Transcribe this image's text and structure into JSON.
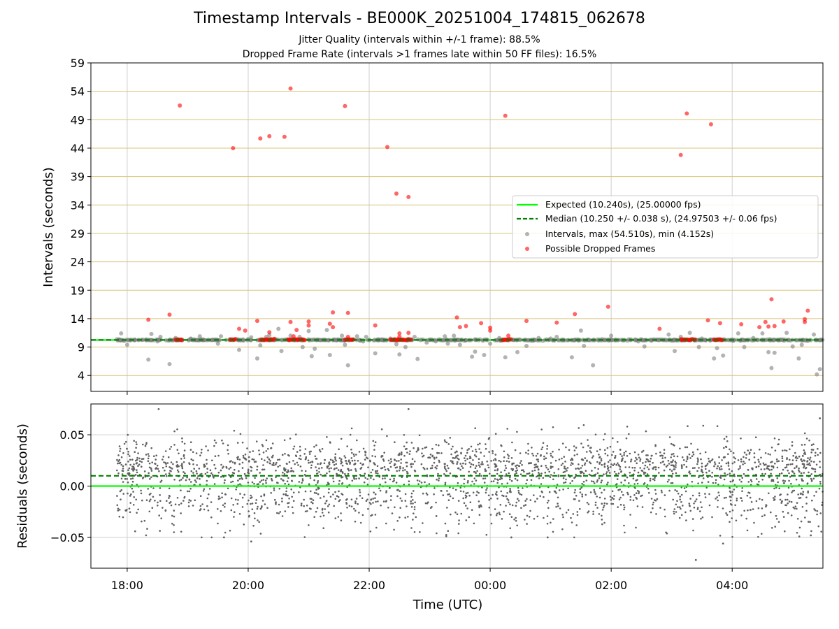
{
  "chart_data": [
    {
      "type": "scatter",
      "title": "Timestamp Intervals - BE000K_20251004_174815_062678",
      "subtitle_lines": [
        "Jitter Quality (intervals within +/-1 frame): 88.5%",
        "Dropped Frame Rate (intervals >1 frames late within 50 FF files): 16.5%"
      ],
      "ylabel": "Intervals (seconds)",
      "ylim": [
        1.2,
        59
      ],
      "yticks": [
        "4",
        "9",
        "14",
        "19",
        "24",
        "29",
        "34",
        "39",
        "44",
        "49",
        "54",
        "59"
      ],
      "y_grid": "horizontal lines at each tick, tan colored",
      "legend_position": "center-right",
      "reference_lines": [
        {
          "name": "Expected (10.240s), (25.00000 fps)",
          "y": 10.24,
          "color": "#00ff00",
          "style": "solid"
        },
        {
          "name": "Median (10.250 +/- 0.038 s), (24.97503 +/- 0.06 fps)",
          "y": 10.25,
          "color": "#008000",
          "style": "dashed"
        }
      ],
      "series": [
        {
          "name": "Intervals, max (54.510s), min (4.152s)",
          "color": "#808080",
          "points": [
            [
              17.9,
              11.4
            ],
            [
              18.0,
              9.4
            ],
            [
              18.35,
              6.8
            ],
            [
              18.4,
              11.3
            ],
            [
              18.5,
              10.0
            ],
            [
              18.55,
              10.8
            ],
            [
              18.7,
              6.0
            ],
            [
              18.8,
              10.6
            ],
            [
              19.05,
              10.5
            ],
            [
              19.2,
              10.9
            ],
            [
              19.5,
              9.6
            ],
            [
              19.55,
              10.9
            ],
            [
              19.7,
              10.4
            ],
            [
              19.85,
              8.5
            ],
            [
              19.9,
              10.3
            ],
            [
              20.05,
              10.7
            ],
            [
              20.15,
              7.0
            ],
            [
              20.2,
              9.3
            ],
            [
              20.3,
              10.8
            ],
            [
              20.35,
              11.1
            ],
            [
              20.5,
              12.2
            ],
            [
              20.55,
              8.3
            ],
            [
              20.7,
              11.0
            ],
            [
              20.85,
              10.8
            ],
            [
              20.9,
              9.0
            ],
            [
              21.0,
              11.8
            ],
            [
              21.05,
              7.4
            ],
            [
              21.1,
              8.7
            ],
            [
              21.3,
              12.0
            ],
            [
              21.35,
              7.6
            ],
            [
              21.45,
              10.2
            ],
            [
              21.55,
              11.0
            ],
            [
              21.6,
              9.4
            ],
            [
              21.65,
              5.8
            ],
            [
              21.8,
              10.9
            ],
            [
              21.9,
              10.0
            ],
            [
              21.95,
              10.8
            ],
            [
              22.1,
              7.9
            ],
            [
              22.35,
              10.5
            ],
            [
              22.45,
              9.5
            ],
            [
              22.5,
              7.7
            ],
            [
              22.6,
              9.0
            ],
            [
              22.65,
              10.4
            ],
            [
              22.75,
              10.8
            ],
            [
              22.8,
              6.9
            ],
            [
              22.95,
              9.8
            ],
            [
              23.1,
              10.0
            ],
            [
              23.25,
              10.9
            ],
            [
              23.3,
              9.6
            ],
            [
              23.4,
              11.0
            ],
            [
              23.5,
              9.4
            ],
            [
              23.6,
              10.2
            ],
            [
              23.7,
              7.3
            ],
            [
              23.75,
              8.2
            ],
            [
              23.9,
              7.6
            ],
            [
              24.0,
              9.6
            ],
            [
              24.15,
              10.6
            ],
            [
              24.25,
              7.2
            ],
            [
              24.45,
              8.1
            ],
            [
              24.6,
              9.2
            ],
            [
              24.8,
              10.6
            ],
            [
              25.0,
              10.5
            ],
            [
              25.1,
              10.8
            ],
            [
              25.35,
              7.2
            ],
            [
              25.5,
              11.9
            ],
            [
              25.55,
              9.2
            ],
            [
              25.7,
              5.8
            ],
            [
              25.85,
              10.4
            ],
            [
              26.0,
              11.0
            ],
            [
              26.2,
              10.2
            ],
            [
              26.45,
              10.0
            ],
            [
              26.55,
              9.1
            ],
            [
              26.75,
              10.3
            ],
            [
              26.95,
              11.2
            ],
            [
              27.05,
              8.3
            ],
            [
              27.15,
              10.8
            ],
            [
              27.3,
              11.5
            ],
            [
              27.45,
              9.0
            ],
            [
              27.5,
              10.5
            ],
            [
              27.7,
              7.0
            ],
            [
              27.75,
              8.8
            ],
            [
              27.85,
              7.5
            ],
            [
              28.1,
              11.4
            ],
            [
              28.2,
              9.0
            ],
            [
              28.35,
              10.6
            ],
            [
              28.5,
              11.4
            ],
            [
              28.6,
              8.1
            ],
            [
              28.7,
              8.0
            ],
            [
              28.9,
              11.5
            ],
            [
              29.0,
              9.1
            ],
            [
              29.1,
              7.0
            ],
            [
              29.15,
              9.4
            ],
            [
              29.25,
              10.1
            ],
            [
              29.4,
              4.2
            ],
            [
              29.45,
              5.1
            ],
            [
              29.35,
              11.2
            ],
            [
              28.65,
              5.3
            ]
          ]
        },
        {
          "name": "Possible Dropped Frames",
          "color": "#ff0000",
          "points": [
            [
              18.35,
              13.8
            ],
            [
              18.7,
              14.7
            ],
            [
              18.87,
              51.5
            ],
            [
              19.75,
              44.0
            ],
            [
              19.85,
              12.2
            ],
            [
              19.95,
              11.9
            ],
            [
              20.15,
              13.6
            ],
            [
              20.2,
              45.7
            ],
            [
              20.35,
              46.1
            ],
            [
              20.35,
              11.6
            ],
            [
              20.6,
              46.0
            ],
            [
              20.7,
              13.4
            ],
            [
              20.7,
              54.5
            ],
            [
              20.75,
              10.9
            ],
            [
              20.8,
              12.0
            ],
            [
              21.0,
              13.5
            ],
            [
              21.0,
              12.8
            ],
            [
              21.35,
              13.1
            ],
            [
              21.4,
              15.1
            ],
            [
              21.4,
              12.5
            ],
            [
              21.6,
              51.4
            ],
            [
              21.65,
              15.0
            ],
            [
              21.65,
              10.8
            ],
            [
              22.1,
              12.8
            ],
            [
              22.3,
              44.2
            ],
            [
              22.45,
              36.0
            ],
            [
              22.5,
              11.4
            ],
            [
              22.5,
              10.8
            ],
            [
              22.65,
              35.4
            ],
            [
              22.65,
              11.5
            ],
            [
              23.45,
              14.2
            ],
            [
              23.5,
              12.5
            ],
            [
              23.6,
              12.7
            ],
            [
              23.85,
              13.2
            ],
            [
              24.0,
              12.4
            ],
            [
              24.0,
              11.9
            ],
            [
              24.25,
              49.7
            ],
            [
              24.3,
              11.0
            ],
            [
              24.6,
              13.6
            ],
            [
              25.1,
              13.3
            ],
            [
              25.4,
              14.8
            ],
            [
              25.95,
              16.1
            ],
            [
              26.8,
              12.2
            ],
            [
              27.15,
              42.8
            ],
            [
              27.25,
              50.1
            ],
            [
              27.6,
              13.7
            ],
            [
              27.65,
              48.2
            ],
            [
              27.8,
              13.2
            ],
            [
              28.15,
              13.0
            ],
            [
              28.45,
              12.5
            ],
            [
              28.55,
              13.4
            ],
            [
              28.6,
              12.6
            ],
            [
              28.65,
              17.4
            ],
            [
              28.7,
              12.7
            ],
            [
              28.85,
              13.5
            ],
            [
              29.2,
              13.4
            ],
            [
              29.2,
              13.9
            ],
            [
              29.25,
              15.4
            ]
          ]
        }
      ],
      "dense_dropped_clusters": [
        [
          18.8,
          18.92
        ],
        [
          19.7,
          19.8
        ],
        [
          20.2,
          20.45
        ],
        [
          20.65,
          20.95
        ],
        [
          21.6,
          21.75
        ],
        [
          22.35,
          22.7
        ],
        [
          24.2,
          24.35
        ],
        [
          27.15,
          27.4
        ],
        [
          27.7,
          27.85
        ]
      ]
    },
    {
      "type": "scatter",
      "xlabel": "Time (UTC)",
      "ylabel": "Residuals (seconds)",
      "xlim": [
        17.4,
        29.5
      ],
      "xticks": [
        "18:00",
        "20:00",
        "22:00",
        "00:00",
        "02:00",
        "04:00"
      ],
      "ylim": [
        -0.08,
        0.08
      ],
      "yticks": [
        "−0.05",
        "0.00",
        "0.05"
      ],
      "grid": true,
      "reference_lines": [
        {
          "name": "Expected",
          "y": 0.0,
          "color": "#00ff00",
          "style": "solid"
        },
        {
          "name": "Median",
          "y": 0.01,
          "color": "#008000",
          "style": "dashed"
        }
      ],
      "series": [
        {
          "name": "Residuals",
          "color": "#606060",
          "x_range": [
            17.82,
            29.5
          ],
          "point_count": 2600,
          "distribution": "bimodal clusters near +0.02 and -0.01 with spread between -0.05 and +0.065",
          "outliers": [
            [
              18.52,
              0.075
            ],
            [
              22.65,
              0.075
            ],
            [
              27.4,
              -0.072
            ],
            [
              27.85,
              -0.056
            ],
            [
              19.6,
              -0.05
            ],
            [
              20.05,
              -0.054
            ],
            [
              24.35,
              -0.05
            ],
            [
              24.95,
              -0.05
            ],
            [
              29.3,
              -0.048
            ],
            [
              29.45,
              0.066
            ]
          ]
        }
      ]
    }
  ]
}
